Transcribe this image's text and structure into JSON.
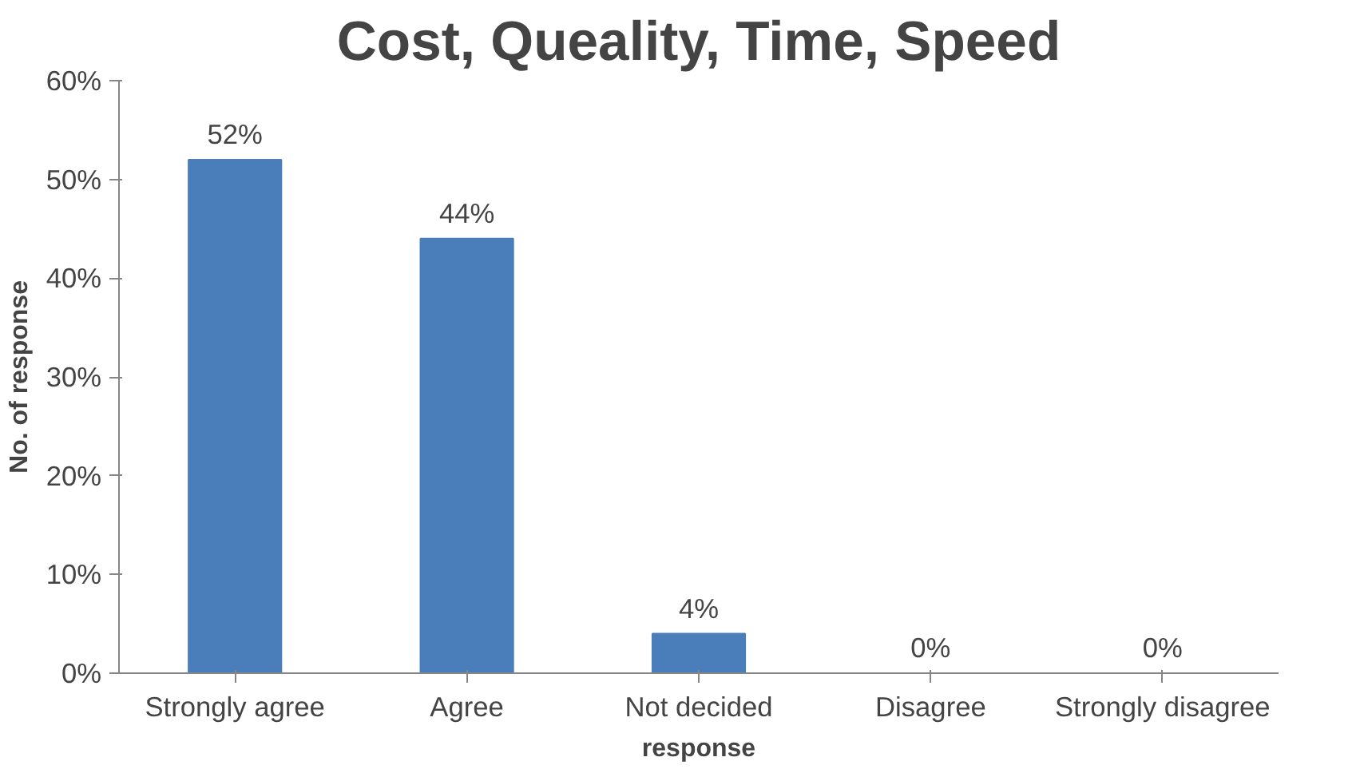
{
  "chart_data": {
    "type": "bar",
    "title": "Cost, Queality, Time, Speed",
    "xlabel": "response",
    "ylabel": "No. of response",
    "categories": [
      "Strongly agree",
      "Agree",
      "Not decided",
      "Disagree",
      "Strongly disagree"
    ],
    "values": [
      52,
      44,
      4,
      0,
      0
    ],
    "color": "#4a7ebb",
    "value_labels": [
      "52%",
      "44%",
      "4%",
      "0%",
      "0%"
    ],
    "ylim": [
      0,
      60
    ],
    "yticks": [
      {
        "value": 0,
        "label": "0%"
      },
      {
        "value": 10,
        "label": "10%"
      },
      {
        "value": 20,
        "label": "20%"
      },
      {
        "value": 30,
        "label": "30%"
      },
      {
        "value": 40,
        "label": "40%"
      },
      {
        "value": 50,
        "label": "50%"
      },
      {
        "value": 60,
        "label": "60%"
      }
    ],
    "grid": false
  }
}
